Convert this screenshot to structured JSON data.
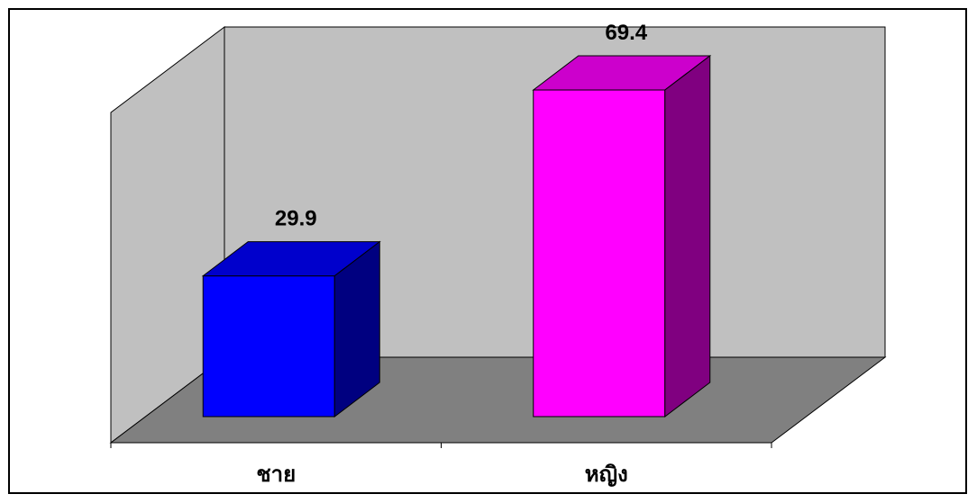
{
  "chart_data": {
    "type": "bar",
    "style": "3d-column",
    "categories": [
      "ชาย",
      "หญิง"
    ],
    "values": [
      29.9,
      69.4
    ],
    "data_labels": [
      "29.9",
      "69.4"
    ],
    "title": "",
    "xlabel": "",
    "ylabel": "",
    "ylim": [
      0,
      75
    ],
    "grid": false,
    "legend": "none",
    "colors": {
      "bars": [
        "#0000ff",
        "#ff00ff"
      ],
      "back_wall": "#c0c0c0",
      "floor": "#808080"
    }
  }
}
